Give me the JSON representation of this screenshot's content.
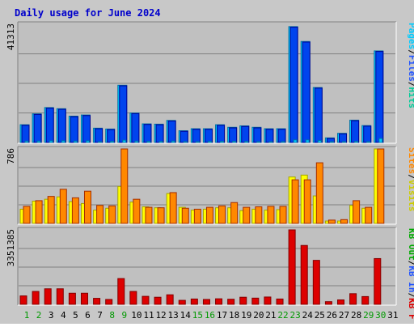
{
  "title": "Daily usage for June 2024",
  "colors": {
    "frame_bg": "#c8c8c8",
    "plot_bg": "#c0c0c0",
    "title_text": "#0000cc",
    "hits": "#00ccff",
    "files": "#0044ee",
    "pages": "#00ccff",
    "visits": "#ffff00",
    "sites": "#ff8800",
    "kb_in": "#2255ff",
    "kb_out": "#00aa00",
    "kb_f": "#dd0000",
    "weekend_day": "#009900",
    "weekday_day": "#000000"
  },
  "chart_data": [
    {
      "type": "bar",
      "panel": "top",
      "max_label": "41313",
      "ymax": 41313,
      "legend": [
        {
          "text": "Hits",
          "color": "#00cc99"
        },
        {
          "text": "/",
          "color": "#000000"
        },
        {
          "text": "Files",
          "color": "#2255ff"
        },
        {
          "text": "/",
          "color": "#000000"
        },
        {
          "text": "Pages",
          "color": "#00ccff"
        }
      ],
      "x": [
        1,
        2,
        3,
        4,
        5,
        6,
        7,
        8,
        9,
        10,
        11,
        12,
        13,
        14,
        15,
        16,
        17,
        18,
        19,
        20,
        21,
        22,
        23,
        24,
        25,
        26,
        27,
        28,
        29,
        30,
        31
      ],
      "series": [
        {
          "name": "Hits",
          "color": "#00ccff",
          "values": [
            6200,
            10000,
            12200,
            11800,
            9200,
            9600,
            5000,
            4700,
            20000,
            10300,
            6500,
            6400,
            7700,
            4100,
            4800,
            4800,
            6200,
            5300,
            5800,
            5300,
            4800,
            4800,
            40500,
            35300,
            19200,
            1600,
            3200,
            7800,
            5900,
            32000,
            0
          ]
        },
        {
          "name": "Files",
          "color": "#0044ee",
          "values": [
            6000,
            9800,
            12000,
            11600,
            9000,
            9400,
            4800,
            4500,
            19800,
            10100,
            6300,
            6200,
            7500,
            3900,
            4600,
            4600,
            6000,
            5100,
            5600,
            5100,
            4600,
            4600,
            40300,
            35100,
            19000,
            1400,
            3000,
            7600,
            5700,
            31800,
            0
          ]
        },
        {
          "name": "Pages",
          "color": "#00ccff",
          "values": [
            500,
            500,
            600,
            600,
            500,
            600,
            300,
            400,
            800,
            500,
            400,
            400,
            500,
            300,
            300,
            400,
            400,
            400,
            400,
            300,
            300,
            300,
            900,
            900,
            700,
            100,
            200,
            400,
            300,
            1400,
            0
          ]
        }
      ]
    },
    {
      "type": "bar",
      "panel": "middle",
      "max_label": "786",
      "ymax": 786,
      "legend": [
        {
          "text": "Visits",
          "color": "#cccc00"
        },
        {
          "text": "/",
          "color": "#000000"
        },
        {
          "text": "Sites",
          "color": "#ff8800"
        }
      ],
      "x": [
        1,
        2,
        3,
        4,
        5,
        6,
        7,
        8,
        9,
        10,
        11,
        12,
        13,
        14,
        15,
        16,
        17,
        18,
        19,
        20,
        21,
        22,
        23,
        24,
        25,
        26,
        27,
        28,
        29,
        30,
        31
      ],
      "series": [
        {
          "name": "Visits",
          "color": "#ffff00",
          "values": [
            150,
            235,
            255,
            280,
            230,
            210,
            140,
            160,
            390,
            225,
            175,
            165,
            315,
            170,
            140,
            150,
            165,
            165,
            135,
            150,
            140,
            145,
            490,
            510,
            290,
            25,
            25,
            190,
            160,
            786,
            0
          ]
        },
        {
          "name": "Sites",
          "color": "#ff8800",
          "values": [
            180,
            240,
            285,
            360,
            270,
            340,
            190,
            185,
            786,
            255,
            170,
            165,
            325,
            160,
            150,
            170,
            185,
            220,
            170,
            175,
            180,
            180,
            460,
            460,
            640,
            35,
            40,
            240,
            170,
            786,
            0
          ]
        }
      ]
    },
    {
      "type": "bar",
      "panel": "bottom",
      "max_label": "3351385",
      "ymax": 3351385,
      "legend": [
        {
          "text": "KB F",
          "color": "#dd0000"
        },
        {
          "text": "/",
          "color": "#000000"
        },
        {
          "text": "KB In",
          "color": "#2255ff"
        },
        {
          "text": "/",
          "color": "#000000"
        },
        {
          "text": "KB Out",
          "color": "#00aa00"
        }
      ],
      "x": [
        1,
        2,
        3,
        4,
        5,
        6,
        7,
        8,
        9,
        10,
        11,
        12,
        13,
        14,
        15,
        16,
        17,
        18,
        19,
        20,
        21,
        22,
        23,
        24,
        25,
        26,
        27,
        28,
        29,
        30,
        31
      ],
      "series": [
        {
          "name": "KB F",
          "color": "#dd0000",
          "values": [
            380000,
            580000,
            700000,
            700000,
            500000,
            500000,
            270000,
            220000,
            1160000,
            580000,
            360000,
            320000,
            430000,
            180000,
            240000,
            220000,
            250000,
            230000,
            320000,
            280000,
            330000,
            240000,
            3351385,
            2650000,
            1980000,
            120000,
            200000,
            480000,
            350000,
            2060000,
            0
          ]
        }
      ]
    }
  ],
  "x_axis": {
    "labels": [
      "1",
      "2",
      "3",
      "4",
      "5",
      "6",
      "7",
      "8",
      "9",
      "10",
      "11",
      "12",
      "13",
      "14",
      "15",
      "16",
      "17",
      "18",
      "19",
      "20",
      "21",
      "22",
      "23",
      "24",
      "25",
      "26",
      "27",
      "28",
      "29",
      "30",
      "31"
    ],
    "weekend_days": [
      1,
      2,
      8,
      9,
      15,
      16,
      22,
      23,
      29,
      30
    ]
  }
}
